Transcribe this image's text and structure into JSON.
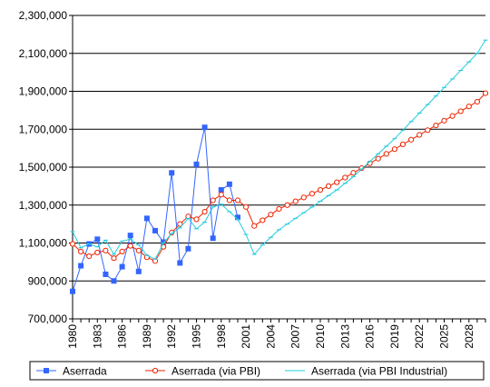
{
  "chart_data": {
    "type": "line",
    "title": "",
    "xlabel": "",
    "ylabel": "",
    "ylim": [
      700000,
      2300000
    ],
    "yticks": [
      700000,
      900000,
      1100000,
      1300000,
      1500000,
      1700000,
      1900000,
      2100000,
      2300000
    ],
    "ytick_labels": [
      "700,000",
      "900,000",
      "1,100,000",
      "1,300,000",
      "1,500,000",
      "1,700,000",
      "1,900,000",
      "2,100,000",
      "2,300,000"
    ],
    "x_start": 1980,
    "x_end": 2030,
    "xtick_labels": [
      "1980",
      "1983",
      "1986",
      "1989",
      "1992",
      "1995",
      "1998",
      "2001",
      "2004",
      "2007",
      "2010",
      "2013",
      "2016",
      "2019",
      "2022",
      "2025",
      "2028"
    ],
    "grid": "horizontal",
    "legend_position": "bottom",
    "series": [
      {
        "name": "Aserrada",
        "color": "#3366ff",
        "marker": "square",
        "x": [
          1980,
          1981,
          1982,
          1983,
          1984,
          1985,
          1986,
          1987,
          1988,
          1989,
          1990,
          1991,
          1992,
          1993,
          1994,
          1995,
          1996,
          1997,
          1998,
          1999,
          2000
        ],
        "values": [
          845000,
          980000,
          1095000,
          1120000,
          935000,
          900000,
          975000,
          1140000,
          950000,
          1230000,
          1165000,
          1105000,
          1470000,
          995000,
          1070000,
          1515000,
          1710000,
          1125000,
          1380000,
          1410000,
          1235000
        ]
      },
      {
        "name": "Aserrada (via PBI)",
        "color": "#ee2200",
        "marker": "circle",
        "x": [
          1980,
          1981,
          1982,
          1983,
          1984,
          1985,
          1986,
          1987,
          1988,
          1989,
          1990,
          1991,
          1992,
          1993,
          1994,
          1995,
          1996,
          1997,
          1998,
          1999,
          2000,
          2001,
          2002,
          2003,
          2004,
          2005,
          2006,
          2007,
          2008,
          2009,
          2010,
          2011,
          2012,
          2013,
          2014,
          2015,
          2016,
          2017,
          2018,
          2019,
          2020,
          2021,
          2022,
          2023,
          2024,
          2025,
          2026,
          2027,
          2028,
          2029,
          2030
        ],
        "values": [
          1095000,
          1055000,
          1030000,
          1050000,
          1060000,
          1020000,
          1055000,
          1085000,
          1060000,
          1025000,
          1005000,
          1080000,
          1155000,
          1200000,
          1240000,
          1225000,
          1265000,
          1325000,
          1355000,
          1325000,
          1325000,
          1290000,
          1190000,
          1220000,
          1250000,
          1280000,
          1300000,
          1320000,
          1340000,
          1360000,
          1380000,
          1400000,
          1420000,
          1445000,
          1470000,
          1495000,
          1520000,
          1545000,
          1570000,
          1595000,
          1620000,
          1645000,
          1670000,
          1695000,
          1720000,
          1745000,
          1770000,
          1795000,
          1820000,
          1845000,
          1890000
        ]
      },
      {
        "name": "Aserrada (via PBI Industrial)",
        "color": "#22ccdd",
        "marker": "tick",
        "x": [
          1980,
          1981,
          1982,
          1983,
          1984,
          1985,
          1986,
          1987,
          1988,
          1989,
          1990,
          1991,
          1992,
          1993,
          1994,
          1995,
          1996,
          1997,
          1998,
          1999,
          2000,
          2001,
          2002,
          2003,
          2004,
          2005,
          2006,
          2007,
          2008,
          2009,
          2010,
          2011,
          2012,
          2013,
          2014,
          2015,
          2016,
          2017,
          2018,
          2019,
          2020,
          2021,
          2022,
          2023,
          2024,
          2025,
          2026,
          2027,
          2028,
          2029,
          2030
        ],
        "values": [
          1160000,
          1075000,
          1095000,
          1080000,
          1115000,
          1040000,
          1110000,
          1120000,
          1090000,
          1035000,
          1015000,
          1100000,
          1150000,
          1180000,
          1230000,
          1175000,
          1210000,
          1290000,
          1305000,
          1265000,
          1225000,
          1145000,
          1040000,
          1090000,
          1130000,
          1170000,
          1200000,
          1230000,
          1260000,
          1290000,
          1320000,
          1350000,
          1380000,
          1415000,
          1450000,
          1490000,
          1530000,
          1570000,
          1610000,
          1650000,
          1695000,
          1740000,
          1785000,
          1830000,
          1875000,
          1920000,
          1965000,
          2010000,
          2055000,
          2100000,
          2170000
        ]
      }
    ]
  }
}
